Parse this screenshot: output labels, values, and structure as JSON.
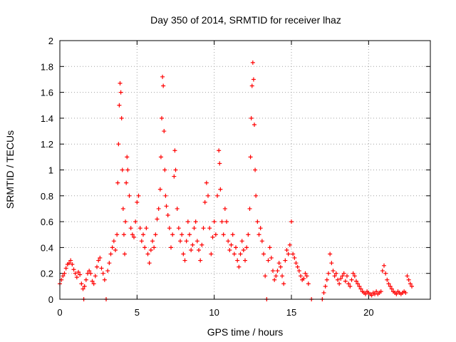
{
  "chart_data": {
    "type": "scatter",
    "title": "Day 350 of 2014, SRMTID for receiver lhaz",
    "xlabel": "GPS time / hours",
    "ylabel": "SRMTID / TECUs",
    "xlim": [
      0,
      24
    ],
    "ylim": [
      0,
      2
    ],
    "xticks": [
      "0",
      "5",
      "10",
      "15",
      "20"
    ],
    "yticks": [
      "0",
      "0.2",
      "0.4",
      "0.6",
      "0.8",
      "1",
      "1.2",
      "1.4",
      "1.6",
      "1.8",
      "2"
    ],
    "xtick_values": [
      0,
      5,
      10,
      15,
      20
    ],
    "ytick_values": [
      0,
      0.2,
      0.4,
      0.6,
      0.8,
      1.0,
      1.2,
      1.4,
      1.6,
      1.8,
      2.0
    ],
    "grid": true,
    "marker": "plus",
    "series": [
      {
        "name": "SRMTID",
        "color": "#ff0000",
        "points": [
          [
            0.0,
            0.12
          ],
          [
            0.1,
            0.15
          ],
          [
            0.2,
            0.18
          ],
          [
            0.3,
            0.2
          ],
          [
            0.4,
            0.24
          ],
          [
            0.5,
            0.27
          ],
          [
            0.6,
            0.28
          ],
          [
            0.7,
            0.3
          ],
          [
            0.8,
            0.27
          ],
          [
            0.9,
            0.23
          ],
          [
            1.0,
            0.2
          ],
          [
            1.1,
            0.17
          ],
          [
            1.2,
            0.21
          ],
          [
            1.3,
            0.19
          ],
          [
            1.4,
            0.12
          ],
          [
            1.5,
            0.08
          ],
          [
            1.55,
            0.0
          ],
          [
            1.6,
            0.1
          ],
          [
            1.7,
            0.15
          ],
          [
            1.8,
            0.2
          ],
          [
            1.9,
            0.22
          ],
          [
            2.0,
            0.2
          ],
          [
            2.1,
            0.14
          ],
          [
            2.2,
            0.12
          ],
          [
            2.3,
            0.18
          ],
          [
            2.4,
            0.25
          ],
          [
            2.5,
            0.3
          ],
          [
            2.6,
            0.32
          ],
          [
            2.7,
            0.24
          ],
          [
            2.8,
            0.2
          ],
          [
            2.9,
            0.15
          ],
          [
            3.0,
            0.0
          ],
          [
            3.1,
            0.22
          ],
          [
            3.2,
            0.28
          ],
          [
            3.3,
            0.35
          ],
          [
            3.4,
            0.4
          ],
          [
            3.5,
            0.45
          ],
          [
            3.6,
            0.38
          ],
          [
            3.7,
            0.5
          ],
          [
            3.75,
            0.9
          ],
          [
            3.8,
            1.2
          ],
          [
            3.85,
            1.5
          ],
          [
            3.9,
            1.67
          ],
          [
            3.95,
            1.6
          ],
          [
            4.0,
            1.4
          ],
          [
            4.05,
            1.0
          ],
          [
            4.1,
            0.7
          ],
          [
            4.15,
            0.5
          ],
          [
            4.2,
            0.35
          ],
          [
            4.25,
            0.6
          ],
          [
            4.3,
            0.9
          ],
          [
            4.35,
            1.1
          ],
          [
            4.4,
            1.0
          ],
          [
            4.5,
            0.8
          ],
          [
            4.6,
            0.55
          ],
          [
            4.7,
            0.5
          ],
          [
            4.8,
            0.48
          ],
          [
            4.9,
            0.6
          ],
          [
            5.0,
            0.75
          ],
          [
            5.1,
            0.8
          ],
          [
            5.2,
            0.55
          ],
          [
            5.3,
            0.45
          ],
          [
            5.4,
            0.5
          ],
          [
            5.5,
            0.4
          ],
          [
            5.6,
            0.55
          ],
          [
            5.7,
            0.35
          ],
          [
            5.8,
            0.28
          ],
          [
            5.9,
            0.38
          ],
          [
            6.0,
            0.45
          ],
          [
            6.1,
            0.4
          ],
          [
            6.2,
            0.5
          ],
          [
            6.3,
            0.62
          ],
          [
            6.4,
            0.7
          ],
          [
            6.5,
            0.85
          ],
          [
            6.55,
            1.1
          ],
          [
            6.6,
            1.4
          ],
          [
            6.65,
            1.72
          ],
          [
            6.7,
            1.65
          ],
          [
            6.75,
            1.3
          ],
          [
            6.8,
            1.0
          ],
          [
            6.85,
            0.8
          ],
          [
            6.9,
            0.72
          ],
          [
            7.0,
            0.65
          ],
          [
            7.1,
            0.55
          ],
          [
            7.2,
            0.4
          ],
          [
            7.3,
            0.5
          ],
          [
            7.4,
            0.95
          ],
          [
            7.45,
            1.15
          ],
          [
            7.5,
            1.0
          ],
          [
            7.6,
            0.7
          ],
          [
            7.7,
            0.55
          ],
          [
            7.8,
            0.45
          ],
          [
            7.9,
            0.5
          ],
          [
            8.0,
            0.35
          ],
          [
            8.1,
            0.3
          ],
          [
            8.2,
            0.45
          ],
          [
            8.3,
            0.6
          ],
          [
            8.4,
            0.5
          ],
          [
            8.5,
            0.38
          ],
          [
            8.6,
            0.42
          ],
          [
            8.7,
            0.55
          ],
          [
            8.8,
            0.6
          ],
          [
            8.9,
            0.45
          ],
          [
            9.0,
            0.38
          ],
          [
            9.1,
            0.3
          ],
          [
            9.2,
            0.42
          ],
          [
            9.3,
            0.55
          ],
          [
            9.4,
            0.75
          ],
          [
            9.5,
            0.9
          ],
          [
            9.6,
            0.8
          ],
          [
            9.7,
            0.55
          ],
          [
            9.8,
            0.35
          ],
          [
            9.9,
            0.48
          ],
          [
            10.0,
            0.6
          ],
          [
            10.1,
            0.5
          ],
          [
            10.2,
            0.8
          ],
          [
            10.3,
            1.15
          ],
          [
            10.35,
            1.05
          ],
          [
            10.4,
            0.85
          ],
          [
            10.5,
            0.6
          ],
          [
            10.6,
            0.5
          ],
          [
            10.7,
            0.7
          ],
          [
            10.8,
            0.6
          ],
          [
            10.9,
            0.45
          ],
          [
            11.0,
            0.38
          ],
          [
            11.1,
            0.42
          ],
          [
            11.2,
            0.5
          ],
          [
            11.3,
            0.35
          ],
          [
            11.4,
            0.4
          ],
          [
            11.5,
            0.3
          ],
          [
            11.6,
            0.25
          ],
          [
            11.7,
            0.35
          ],
          [
            11.8,
            0.45
          ],
          [
            11.9,
            0.38
          ],
          [
            12.0,
            0.3
          ],
          [
            12.1,
            0.4
          ],
          [
            12.2,
            0.5
          ],
          [
            12.3,
            0.7
          ],
          [
            12.35,
            1.1
          ],
          [
            12.4,
            1.4
          ],
          [
            12.45,
            1.65
          ],
          [
            12.5,
            1.83
          ],
          [
            12.55,
            1.7
          ],
          [
            12.6,
            1.35
          ],
          [
            12.65,
            1.0
          ],
          [
            12.7,
            0.8
          ],
          [
            12.8,
            0.6
          ],
          [
            12.9,
            0.5
          ],
          [
            13.0,
            0.55
          ],
          [
            13.1,
            0.45
          ],
          [
            13.2,
            0.35
          ],
          [
            13.3,
            0.18
          ],
          [
            13.4,
            0.0
          ],
          [
            13.5,
            0.3
          ],
          [
            13.6,
            0.4
          ],
          [
            13.7,
            0.32
          ],
          [
            13.8,
            0.22
          ],
          [
            13.9,
            0.15
          ],
          [
            14.0,
            0.18
          ],
          [
            14.1,
            0.22
          ],
          [
            14.2,
            0.28
          ],
          [
            14.3,
            0.25
          ],
          [
            14.4,
            0.18
          ],
          [
            14.5,
            0.12
          ],
          [
            14.6,
            0.3
          ],
          [
            14.7,
            0.38
          ],
          [
            14.8,
            0.35
          ],
          [
            14.9,
            0.42
          ],
          [
            15.0,
            0.6
          ],
          [
            15.1,
            0.35
          ],
          [
            15.2,
            0.32
          ],
          [
            15.3,
            0.28
          ],
          [
            15.4,
            0.25
          ],
          [
            15.5,
            0.22
          ],
          [
            15.6,
            0.18
          ],
          [
            15.7,
            0.15
          ],
          [
            15.8,
            0.16
          ],
          [
            15.9,
            0.2
          ],
          [
            16.0,
            0.18
          ],
          [
            16.1,
            0.12
          ],
          [
            16.3,
            0.0
          ],
          [
            17.0,
            0.0
          ],
          [
            17.1,
            0.05
          ],
          [
            17.2,
            0.1
          ],
          [
            17.3,
            0.15
          ],
          [
            17.4,
            0.2
          ],
          [
            17.5,
            0.35
          ],
          [
            17.6,
            0.28
          ],
          [
            17.7,
            0.22
          ],
          [
            17.8,
            0.18
          ],
          [
            17.9,
            0.2
          ],
          [
            18.0,
            0.15
          ],
          [
            18.1,
            0.12
          ],
          [
            18.2,
            0.16
          ],
          [
            18.3,
            0.18
          ],
          [
            18.4,
            0.2
          ],
          [
            18.5,
            0.14
          ],
          [
            18.6,
            0.18
          ],
          [
            18.7,
            0.12
          ],
          [
            18.8,
            0.1
          ],
          [
            18.9,
            0.15
          ],
          [
            19.0,
            0.2
          ],
          [
            19.1,
            0.18
          ],
          [
            19.2,
            0.14
          ],
          [
            19.3,
            0.12
          ],
          [
            19.4,
            0.1
          ],
          [
            19.5,
            0.08
          ],
          [
            19.6,
            0.06
          ],
          [
            19.7,
            0.05
          ],
          [
            19.8,
            0.04
          ],
          [
            19.9,
            0.06
          ],
          [
            20.0,
            0.05
          ],
          [
            20.1,
            0.04
          ],
          [
            20.2,
            0.03
          ],
          [
            20.3,
            0.05
          ],
          [
            20.4,
            0.04
          ],
          [
            20.5,
            0.06
          ],
          [
            20.6,
            0.04
          ],
          [
            20.7,
            0.05
          ],
          [
            20.8,
            0.06
          ],
          [
            20.9,
            0.22
          ],
          [
            21.0,
            0.26
          ],
          [
            21.1,
            0.2
          ],
          [
            21.2,
            0.15
          ],
          [
            21.3,
            0.12
          ],
          [
            21.4,
            0.1
          ],
          [
            21.5,
            0.08
          ],
          [
            21.6,
            0.06
          ],
          [
            21.7,
            0.05
          ],
          [
            21.8,
            0.04
          ],
          [
            21.9,
            0.06
          ],
          [
            22.0,
            0.05
          ],
          [
            22.1,
            0.04
          ],
          [
            22.2,
            0.05
          ],
          [
            22.3,
            0.06
          ],
          [
            22.4,
            0.05
          ],
          [
            22.5,
            0.18
          ],
          [
            22.6,
            0.15
          ],
          [
            22.7,
            0.12
          ],
          [
            22.8,
            0.1
          ]
        ]
      }
    ]
  }
}
